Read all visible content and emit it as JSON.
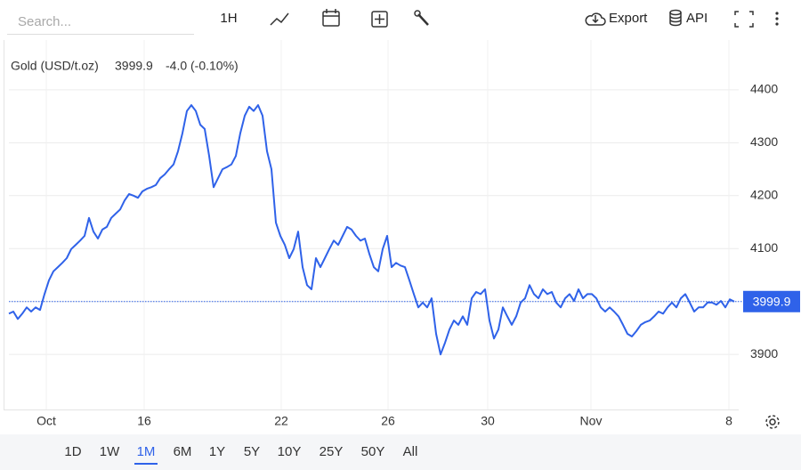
{
  "toolbar": {
    "search_placeholder": "Search...",
    "interval": "1H",
    "export": "Export",
    "api": "API"
  },
  "chart_data": {
    "type": "line",
    "series": [
      {
        "name": "Gold (USD/t.oz)",
        "color": "#2f62e9",
        "values": [
          3977,
          3981,
          3967,
          3977,
          3989,
          3981,
          3989,
          3984,
          4014,
          4040,
          4057,
          4065,
          4073,
          4082,
          4099,
          4107,
          4115,
          4124,
          4158,
          4132,
          4119,
          4136,
          4141,
          4158,
          4166,
          4174,
          4191,
          4203,
          4200,
          4196,
          4208,
          4213,
          4216,
          4220,
          4233,
          4240,
          4250,
          4259,
          4284,
          4318,
          4360,
          4371,
          4360,
          4334,
          4326,
          4275,
          4216,
          4233,
          4250,
          4254,
          4259,
          4275,
          4318,
          4351,
          4368,
          4360,
          4371,
          4351,
          4284,
          4250,
          4149,
          4124,
          4107,
          4082,
          4099,
          4132,
          4065,
          4031,
          4023,
          4082,
          4065,
          4082,
          4099,
          4115,
          4107,
          4124,
          4141,
          4136,
          4124,
          4115,
          4119,
          4090,
          4065,
          4057,
          4099,
          4124,
          4065,
          4073,
          4068,
          4065,
          4040,
          4014,
          3989,
          3998,
          3989,
          4006,
          3939,
          3900,
          3922,
          3947,
          3964,
          3956,
          3972,
          3956,
          4006,
          4018,
          4014,
          4023,
          3964,
          3930,
          3947,
          3989,
          3972,
          3956,
          3972,
          3998,
          4006,
          4031,
          4014,
          4006,
          4023,
          4014,
          4018,
          3998,
          3989,
          4006,
          4014,
          4001,
          4023,
          4006,
          4014,
          4014,
          4006,
          3989,
          3981,
          3989,
          3981,
          3972,
          3956,
          3939,
          3934,
          3944,
          3956,
          3961,
          3964,
          3972,
          3981,
          3977,
          3989,
          3998,
          3989,
          4006,
          4014,
          3998,
          3981,
          3989,
          3989,
          3998,
          3998,
          3994,
          4001,
          3989,
          4004,
          3999.9
        ]
      }
    ],
    "last_price": 3999.9,
    "change_label": "-4.0 (-0.10%)",
    "change_color": "#e0413f",
    "xlim": [
      0,
      164
    ],
    "xticks": [
      {
        "value": 8.4,
        "label": "Oct"
      },
      {
        "value": 30.4,
        "label": "16"
      },
      {
        "value": 61.2,
        "label": "22"
      },
      {
        "value": 85.2,
        "label": "26"
      },
      {
        "value": 107.6,
        "label": "30"
      },
      {
        "value": 130.8,
        "label": "Nov"
      },
      {
        "value": 161.8,
        "label": "8"
      }
    ],
    "ylim": [
      3796,
      4494
    ],
    "yticks": [
      3900,
      4000,
      4100,
      4200,
      4300,
      4400
    ],
    "grid": true
  },
  "ranges": {
    "options": [
      "1D",
      "1W",
      "1M",
      "6M",
      "1Y",
      "5Y",
      "10Y",
      "25Y",
      "50Y",
      "All"
    ],
    "active": "1M"
  }
}
